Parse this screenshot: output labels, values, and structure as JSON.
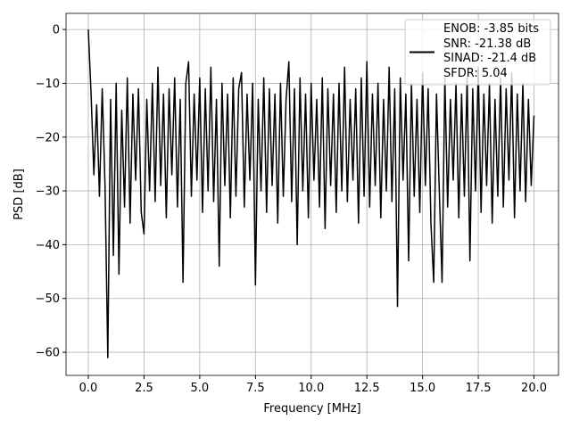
{
  "chart_data": {
    "type": "line",
    "xlabel": "Frequency [MHz]",
    "ylabel": "PSD [dB]",
    "x": [
      0,
      0.125,
      0.25,
      0.375,
      0.5,
      0.625,
      0.75,
      0.875,
      1,
      1.125,
      1.25,
      1.375,
      1.5,
      1.625,
      1.75,
      1.875,
      2,
      2.125,
      2.25,
      2.375,
      2.5,
      2.625,
      2.75,
      2.875,
      3,
      3.125,
      3.25,
      3.375,
      3.5,
      3.625,
      3.75,
      3.875,
      4,
      4.125,
      4.25,
      4.375,
      4.5,
      4.625,
      4.75,
      4.875,
      5,
      5.125,
      5.25,
      5.375,
      5.5,
      5.625,
      5.75,
      5.875,
      6,
      6.125,
      6.25,
      6.375,
      6.5,
      6.625,
      6.75,
      6.875,
      7,
      7.125,
      7.25,
      7.375,
      7.5,
      7.625,
      7.75,
      7.875,
      8,
      8.125,
      8.25,
      8.375,
      8.5,
      8.625,
      8.75,
      8.875,
      9,
      9.125,
      9.25,
      9.375,
      9.5,
      9.625,
      9.75,
      9.875,
      10,
      10.125,
      10.25,
      10.375,
      10.5,
      10.625,
      10.75,
      10.875,
      11,
      11.125,
      11.25,
      11.375,
      11.5,
      11.625,
      11.75,
      11.875,
      12,
      12.125,
      12.25,
      12.375,
      12.5,
      12.625,
      12.75,
      12.875,
      13,
      13.125,
      13.25,
      13.375,
      13.5,
      13.625,
      13.75,
      13.875,
      14,
      14.125,
      14.25,
      14.375,
      14.5,
      14.625,
      14.75,
      14.875,
      15,
      15.125,
      15.25,
      15.375,
      15.5,
      15.625,
      15.75,
      15.875,
      16,
      16.125,
      16.25,
      16.375,
      16.5,
      16.625,
      16.75,
      16.875,
      17,
      17.125,
      17.25,
      17.375,
      17.5,
      17.625,
      17.75,
      17.875,
      18,
      18.125,
      18.25,
      18.375,
      18.5,
      18.625,
      18.75,
      18.875,
      19,
      19.125,
      19.25,
      19.375,
      19.5,
      19.625,
      19.75,
      19.875,
      20
    ],
    "series": [
      {
        "name": "ENOB: -3.85 bits\nSNR: -21.38 dB\nSINAD: -21.4 dB\nSFDR: 5.04",
        "color": "#000000",
        "values": [
          0,
          -12,
          -27,
          -14,
          -31,
          -11,
          -29,
          -61,
          -13,
          -42,
          -10,
          -45.5,
          -15,
          -33,
          -9,
          -36,
          -12,
          -28,
          -11,
          -34,
          -38,
          -13,
          -30,
          -10,
          -32,
          -7,
          -29,
          -12,
          -35,
          -11,
          -27,
          -9,
          -33,
          -13,
          -47,
          -10,
          -6,
          -31,
          -12,
          -28,
          -9,
          -34,
          -11,
          -30,
          -7,
          -32,
          -13,
          -44,
          -10,
          -29,
          -12,
          -35,
          -9,
          -31,
          -11,
          -8,
          -33,
          -12,
          -28,
          -10,
          -47.5,
          -13,
          -30,
          -9,
          -34,
          -11,
          -29,
          -12,
          -36,
          -10,
          -31,
          -13,
          -6,
          -32,
          -11,
          -40,
          -9,
          -30,
          -12,
          -35,
          -10,
          -28,
          -13,
          -33,
          -9,
          -37,
          -11,
          -29,
          -12,
          -34,
          -10,
          -30,
          -7,
          -32,
          -13,
          -28,
          -11,
          -36,
          -9,
          -31,
          -6,
          -33,
          -12,
          -29,
          -10,
          -35,
          -13,
          -30,
          -7,
          -32,
          -11,
          -51.5,
          -9,
          -28,
          -12,
          -43,
          -10,
          -31,
          -13,
          -34,
          -8,
          -29,
          -11,
          -36,
          -47,
          -12,
          -30,
          -47,
          -9,
          -33,
          -13,
          -28,
          -10,
          -35,
          -12,
          -31,
          -9,
          -43,
          -11,
          -30,
          -7,
          -34,
          -12,
          -29,
          -10,
          -36,
          -13,
          -31,
          -9,
          -33,
          -11,
          -28,
          -8,
          -35,
          -12,
          -30,
          -10,
          -32,
          -13,
          -29,
          -16
        ]
      }
    ],
    "xlim": [
      -1.0,
      21.1
    ],
    "ylim": [
      -64.3,
      3.0
    ],
    "xticks": [
      {
        "value": 0,
        "label": "0.0"
      },
      2.5,
      {
        "value": 5,
        "label": "5.0"
      },
      7.5,
      {
        "value": 10,
        "label": "10.0"
      },
      12.5,
      {
        "value": 15,
        "label": "15.0"
      },
      17.5,
      {
        "value": 20,
        "label": "20.0"
      }
    ],
    "yticks": [
      0,
      {
        "value": -10,
        "label": "−10"
      },
      {
        "value": -20,
        "label": "−20"
      },
      {
        "value": -30,
        "label": "−30"
      },
      {
        "value": -40,
        "label": "−40"
      },
      {
        "value": -50,
        "label": "−50"
      },
      {
        "value": -60,
        "label": "−60"
      }
    ],
    "grid": true,
    "legend": "upper right"
  }
}
